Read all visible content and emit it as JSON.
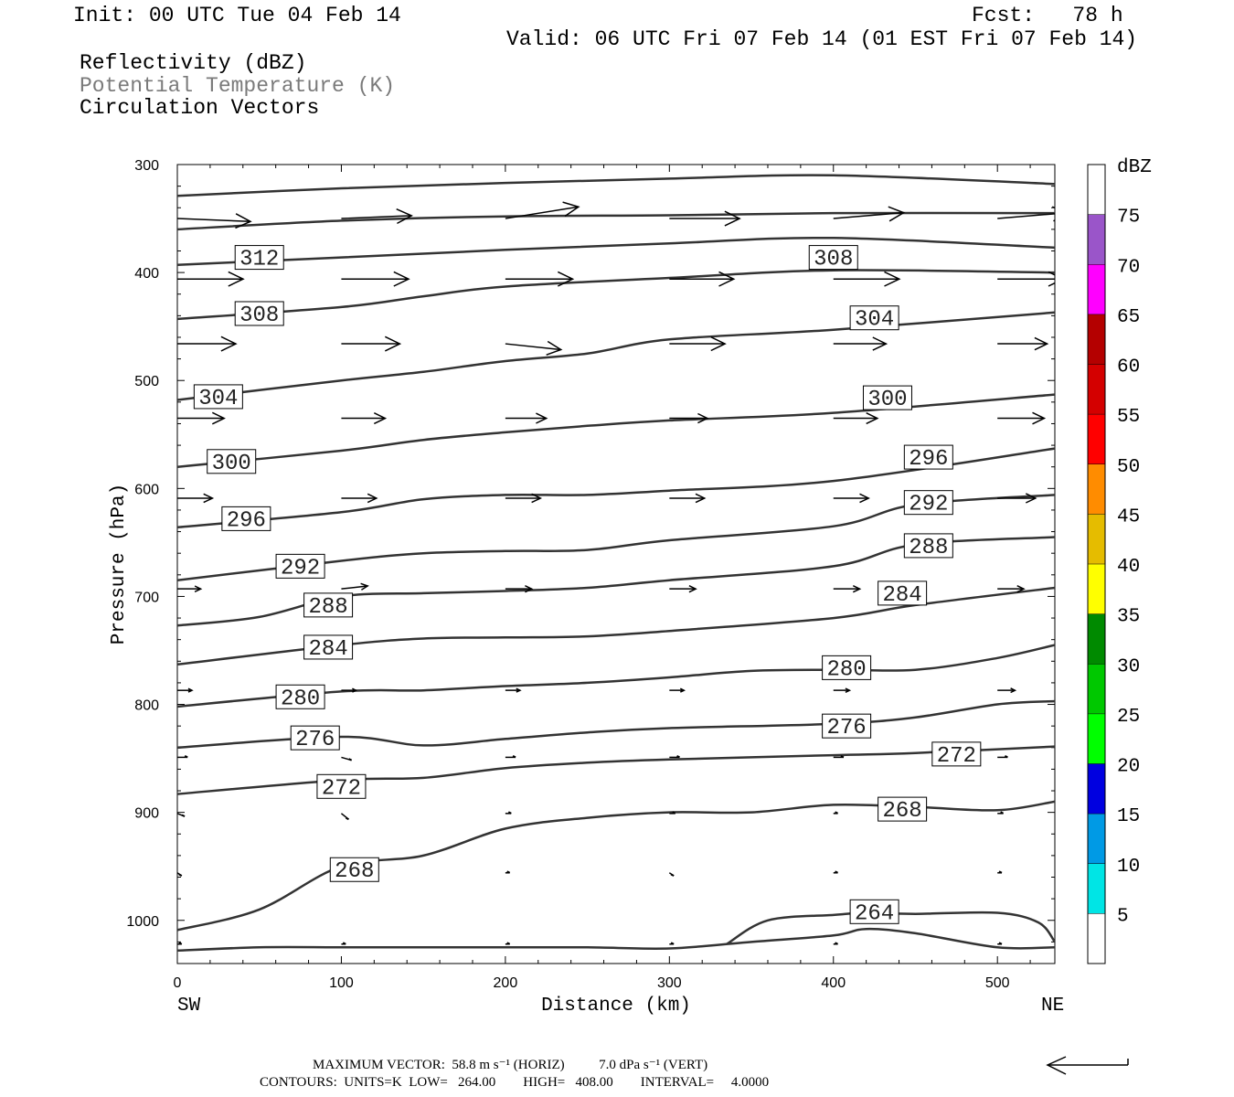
{
  "header": {
    "init": "Init: 00 UTC Tue 04 Feb 14",
    "fcst": "Fcst:   78 h",
    "valid": "Valid: 06 UTC Fri 07 Feb 14 (01 EST Fri 07 Feb 14)",
    "fields": [
      "Reflectivity (dBZ)",
      "Potential Temperature (K)",
      "Circulation Vectors"
    ]
  },
  "footer": {
    "max_vector": "MAXIMUM VECTOR:  58.8 m s⁻¹ (HORIZ)          7.0 dPa s⁻¹ (VERT)",
    "contours": "CONTOURS:  UNITS=K  LOW=   264.00        HIGH=   408.00        INTERVAL=     4.0000"
  },
  "colors": {
    "contour": "#333333",
    "vector": "#000000",
    "label_box": "#ffffff",
    "gray_text": "#7a7a7a"
  },
  "chart_data": {
    "type": "line",
    "subtype": "vertical cross-section with contours and wind vectors",
    "xlabel": "Distance (km)",
    "ylabel": "Pressure (hPa)",
    "xlim": [
      0,
      535
    ],
    "ylim": [
      300,
      1040
    ],
    "y_reversed": true,
    "x_ticks": [
      0,
      100,
      200,
      300,
      400,
      500
    ],
    "x_tick_labels": [
      "0",
      "100",
      "200",
      "300",
      "400",
      "500"
    ],
    "y_ticks": [
      300,
      400,
      500,
      600,
      700,
      800,
      900,
      1000
    ],
    "y_tick_labels": [
      "300",
      "400",
      "500",
      "600",
      "700",
      "800",
      "900",
      "1000"
    ],
    "left_end_label": "SW",
    "right_end_label": "NE",
    "contour_units": "K",
    "contour_low": 264,
    "contour_high": 408,
    "contour_interval": 4,
    "isentropes": [
      {
        "x": [
          0,
          100,
          200,
          300,
          400,
          535
        ],
        "y": [
          329,
          322,
          317,
          313,
          310,
          318
        ]
      },
      {
        "x": [
          0,
          100,
          200,
          300,
          400,
          535
        ],
        "y": [
          360,
          352,
          348,
          347,
          345,
          345
        ]
      },
      {
        "x": [
          0,
          100,
          200,
          300,
          400,
          535
        ],
        "y": [
          393,
          386,
          379,
          373,
          368,
          377
        ],
        "label": "312",
        "label_at": [
          50,
          386
        ]
      },
      {
        "x": [
          0,
          100,
          150,
          200,
          300,
          400,
          535
        ],
        "y": [
          443,
          432,
          422,
          413,
          405,
          398,
          400
        ],
        "label": "308",
        "label_at": [
          50,
          438
        ],
        "label2": "308",
        "label2_at": [
          400,
          386
        ]
      },
      {
        "x": [
          0,
          100,
          150,
          200,
          250,
          300,
          400,
          535
        ],
        "y": [
          518,
          500,
          492,
          482,
          475,
          462,
          453,
          437
        ],
        "label": "304",
        "label_at": [
          25,
          515
        ],
        "label2": "304",
        "label2_at": [
          425,
          442
        ]
      },
      {
        "x": [
          0,
          100,
          150,
          200,
          250,
          300,
          400,
          535
        ],
        "y": [
          580,
          565,
          555,
          548,
          542,
          537,
          530,
          513
        ],
        "label": "300",
        "label_at": [
          33,
          575
        ],
        "label2": "300",
        "label2_at": [
          433,
          516
        ]
      },
      {
        "x": [
          0,
          100,
          150,
          200,
          250,
          300,
          400,
          535
        ],
        "y": [
          636,
          622,
          610,
          606,
          606,
          602,
          593,
          563
        ],
        "label": "296",
        "label_at": [
          42,
          628
        ],
        "label2": "296",
        "label2_at": [
          458,
          571
        ]
      },
      {
        "x": [
          0,
          100,
          150,
          200,
          250,
          300,
          400,
          450,
          535
        ],
        "y": [
          685,
          667,
          660,
          658,
          657,
          648,
          635,
          615,
          606
        ],
        "label": "292",
        "label_at": [
          75,
          672
        ],
        "label2": "292",
        "label2_at": [
          458,
          613
        ]
      },
      {
        "x": [
          0,
          50,
          100,
          150,
          200,
          250,
          300,
          400,
          450,
          535
        ],
        "y": [
          727,
          719,
          700,
          697,
          695,
          692,
          685,
          672,
          652,
          645
        ],
        "label": "288",
        "label_at": [
          92,
          708
        ],
        "label2": "288",
        "label2_at": [
          458,
          653
        ]
      },
      {
        "x": [
          0,
          100,
          150,
          200,
          250,
          300,
          400,
          450,
          535
        ],
        "y": [
          763,
          745,
          739,
          738,
          737,
          732,
          720,
          708,
          692
        ],
        "label": "284",
        "label_at": [
          92,
          747
        ],
        "label2": "284",
        "label2_at": [
          442,
          697
        ]
      },
      {
        "x": [
          0,
          100,
          150,
          200,
          250,
          300,
          350,
          400,
          450,
          500,
          535
        ],
        "y": [
          802,
          788,
          787,
          783,
          780,
          775,
          769,
          768,
          768,
          757,
          745
        ],
        "label": "280",
        "label_at": [
          75,
          793
        ],
        "label2": "280",
        "label2_at": [
          408,
          766
        ]
      },
      {
        "x": [
          0,
          100,
          150,
          200,
          250,
          300,
          400,
          450,
          500,
          535
        ],
        "y": [
          840,
          830,
          838,
          832,
          826,
          822,
          818,
          812,
          800,
          797
        ],
        "label": "276",
        "label_at": [
          84,
          831
        ],
        "label2": "276",
        "label2_at": [
          408,
          820
        ]
      },
      {
        "x": [
          0,
          100,
          150,
          200,
          250,
          300,
          400,
          450,
          535
        ],
        "y": [
          883,
          870,
          868,
          859,
          854,
          851,
          847,
          845,
          839
        ],
        "label": "272",
        "label_at": [
          100,
          876
        ],
        "label2": "272",
        "label2_at": [
          475,
          846
        ]
      },
      {
        "x": [
          0,
          50,
          100,
          150,
          200,
          250,
          300,
          350,
          400,
          450,
          500,
          535
        ],
        "y": [
          1009,
          990,
          950,
          940,
          915,
          905,
          900,
          900,
          893,
          895,
          898,
          890
        ],
        "label": "268",
        "label_at": [
          108,
          953
        ],
        "label2": "268",
        "label2_at": [
          442,
          897
        ]
      },
      {
        "x": [
          335,
          360,
          400,
          420,
          450,
          500,
          525,
          535
        ],
        "y": [
          1022,
          1000,
          995,
          993,
          994,
          993,
          1002,
          1020
        ],
        "label": "264",
        "label_at": [
          425,
          992
        ]
      },
      {
        "x": [
          0,
          50,
          100,
          150,
          200,
          250,
          300,
          350,
          400,
          420,
          450,
          500,
          535
        ],
        "y": [
          1028,
          1025,
          1025,
          1025,
          1025,
          1025,
          1026,
          1020,
          1014,
          1008,
          1012,
          1025,
          1025
        ]
      }
    ],
    "wind_vectors": [
      {
        "level": 350,
        "vectors": [
          [
            0,
            50,
            1
          ],
          [
            100,
            48,
            -1
          ],
          [
            200,
            50,
            -4
          ],
          [
            300,
            48,
            0
          ],
          [
            400,
            48,
            -2
          ],
          [
            500,
            48,
            -2
          ]
        ]
      },
      {
        "level": 406,
        "vectors": [
          [
            0,
            45,
            0
          ],
          [
            100,
            46,
            0
          ],
          [
            200,
            46,
            0
          ],
          [
            300,
            44,
            0
          ],
          [
            400,
            45,
            0
          ],
          [
            500,
            45,
            0
          ]
        ]
      },
      {
        "level": 466,
        "vectors": [
          [
            0,
            40,
            0
          ],
          [
            100,
            40,
            0
          ],
          [
            200,
            38,
            2
          ],
          [
            300,
            38,
            0
          ],
          [
            400,
            36,
            0
          ],
          [
            500,
            34,
            0
          ]
        ]
      },
      {
        "level": 535,
        "vectors": [
          [
            0,
            32,
            0
          ],
          [
            100,
            30,
            0
          ],
          [
            200,
            28,
            0
          ],
          [
            300,
            26,
            0
          ],
          [
            400,
            30,
            0
          ],
          [
            500,
            32,
            0
          ]
        ]
      },
      {
        "level": 609,
        "vectors": [
          [
            0,
            24,
            0
          ],
          [
            100,
            24,
            0
          ],
          [
            200,
            24,
            0
          ],
          [
            300,
            24,
            0
          ],
          [
            400,
            24,
            0
          ],
          [
            500,
            26,
            0
          ]
        ]
      },
      {
        "level": 693,
        "vectors": [
          [
            0,
            16,
            0
          ],
          [
            100,
            18,
            -1
          ],
          [
            200,
            18,
            0
          ],
          [
            300,
            18,
            0
          ],
          [
            400,
            18,
            0
          ],
          [
            500,
            18,
            0
          ]
        ]
      },
      {
        "level": 787,
        "vectors": [
          [
            0,
            10,
            0
          ],
          [
            100,
            10,
            0
          ],
          [
            200,
            10,
            0
          ],
          [
            300,
            10,
            0
          ],
          [
            400,
            11,
            0
          ],
          [
            500,
            12,
            0
          ]
        ]
      },
      {
        "level": 849,
        "vectors": [
          [
            0,
            7,
            0
          ],
          [
            100,
            7,
            1
          ],
          [
            200,
            7,
            0
          ],
          [
            300,
            7,
            0
          ],
          [
            400,
            7,
            0
          ],
          [
            500,
            7,
            0
          ]
        ]
      },
      {
        "level": 901,
        "vectors": [
          [
            0,
            5,
            1
          ],
          [
            100,
            5,
            2
          ],
          [
            200,
            4,
            0
          ],
          [
            300,
            4,
            0
          ],
          [
            400,
            3,
            0
          ],
          [
            500,
            4,
            0
          ]
        ]
      },
      {
        "level": 956,
        "vectors": [
          [
            0,
            3,
            1
          ],
          [
            100,
            3,
            1
          ],
          [
            200,
            3,
            0
          ],
          [
            300,
            3,
            1
          ],
          [
            400,
            3,
            0
          ],
          [
            500,
            3,
            0
          ]
        ]
      },
      {
        "level": 1022,
        "vectors": [
          [
            0,
            3,
            0
          ],
          [
            100,
            3,
            0
          ],
          [
            200,
            3,
            0
          ],
          [
            300,
            3,
            0
          ],
          [
            400,
            3,
            0
          ],
          [
            500,
            3,
            0
          ]
        ]
      }
    ],
    "reference_vector": {
      "horiz_max": 58.8,
      "horiz_units": "m s⁻¹",
      "vert_max": 7.0,
      "vert_units": "dPa s⁻¹"
    },
    "colorbar": {
      "title": "dBZ",
      "labels": [
        "5",
        "10",
        "15",
        "20",
        "25",
        "30",
        "35",
        "40",
        "45",
        "50",
        "55",
        "60",
        "65",
        "70",
        "75"
      ],
      "colors": [
        "#ffffff",
        "#00e5e5",
        "#009ae5",
        "#0000e0",
        "#00ff00",
        "#00c800",
        "#008a00",
        "#ffff00",
        "#e5bc00",
        "#ff8c00",
        "#ff0000",
        "#d40000",
        "#b40000",
        "#ff00ff",
        "#9a55c9",
        "#ffffff"
      ]
    }
  }
}
